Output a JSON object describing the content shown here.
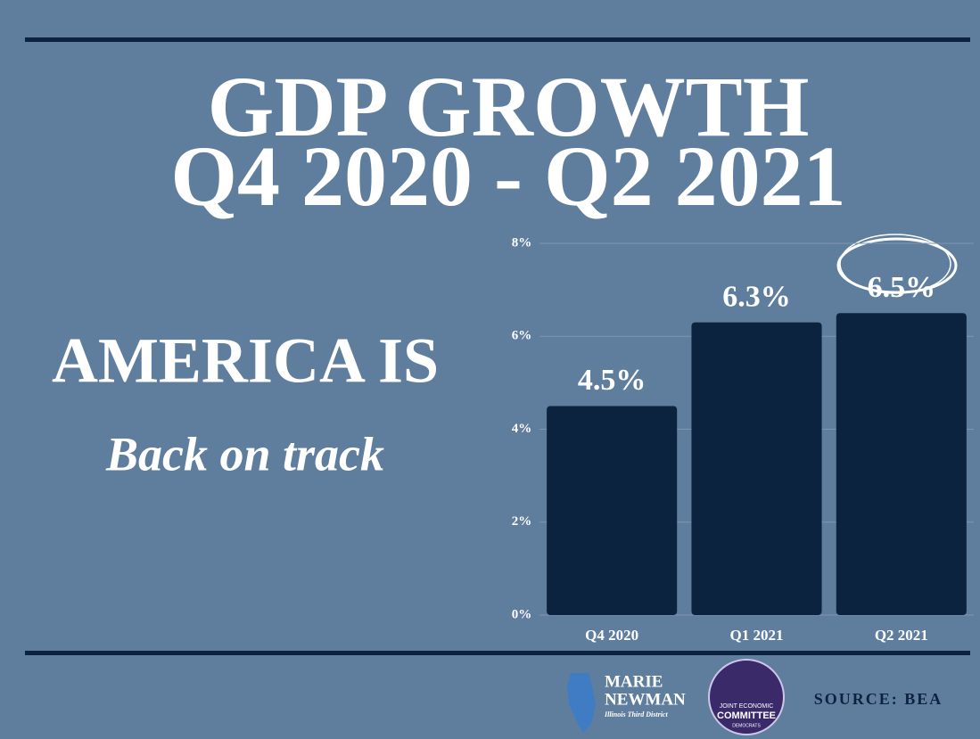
{
  "chart_data": {
    "type": "bar",
    "title": "GDP GROWTH",
    "subtitle": "Q4 2020 - Q2 2021",
    "annotations": [
      "AMERICA IS",
      "Back on track"
    ],
    "categories": [
      "Q4 2020",
      "Q1 2021",
      "Q2 2021"
    ],
    "values": [
      4.5,
      6.3,
      6.5
    ],
    "value_labels": [
      "4.5%",
      "6.3%",
      "6.5%"
    ],
    "color": "#0c2340",
    "ylim": [
      0,
      8
    ],
    "yticks": [
      {
        "value": 0,
        "label": "0%"
      },
      {
        "value": 2,
        "label": "2%"
      },
      {
        "value": 4,
        "label": "4%"
      },
      {
        "value": 6,
        "label": "6%"
      },
      {
        "value": 8,
        "label": "8%"
      }
    ],
    "grid": true
  },
  "footer": {
    "logo_name": [
      "MARIE",
      "NEWMAN"
    ],
    "logo_district": "Illinois Third District",
    "seal": [
      "JOINT ECONOMIC",
      "COMMITTEE",
      "DEMOCRATS"
    ],
    "source": "SOURCE: BEA"
  }
}
